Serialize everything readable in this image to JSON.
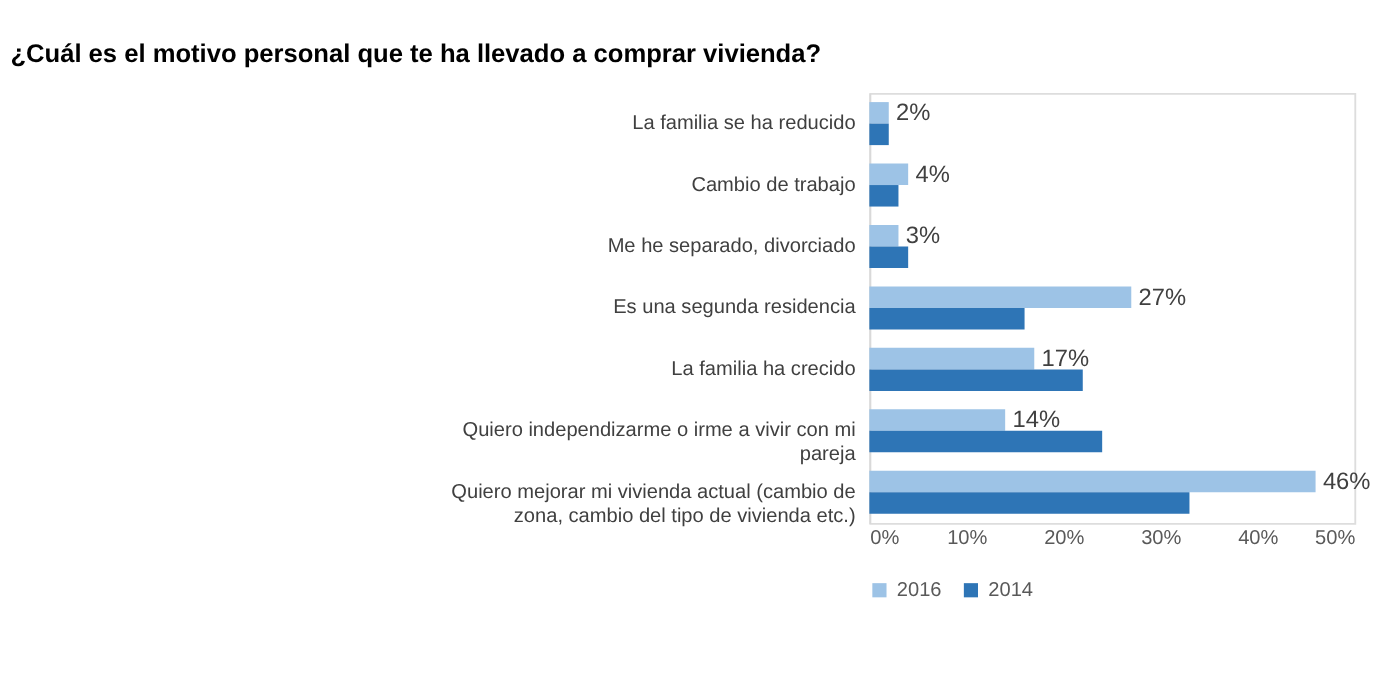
{
  "chart_data": {
    "type": "bar",
    "orientation": "horizontal",
    "title": "¿Cuál es el motivo personal que te ha llevado a comprar vivienda?",
    "categories": [
      "La familia se ha reducido",
      "Cambio de trabajo",
      "Me he separado, divorciado",
      "Es una segunda residencia",
      "La familia ha crecido",
      "Quiero independizarme o irme a vivir con mi pareja",
      "Quiero mejorar mi vivienda actual (cambio de zona, cambio del tipo de vivienda etc.)"
    ],
    "series": [
      {
        "name": "2016",
        "color": "#9dc3e6",
        "values": [
          2,
          4,
          3,
          27,
          17,
          14,
          46
        ],
        "value_labels": [
          "2%",
          "4%",
          "3%",
          "27%",
          "17%",
          "14%",
          "46%"
        ]
      },
      {
        "name": "2014",
        "color": "#2e75b6",
        "values": [
          2,
          3,
          4,
          16,
          22,
          24,
          33
        ]
      }
    ],
    "xlim": [
      0,
      50
    ],
    "xticks": [
      {
        "value": 0,
        "label": "0%"
      },
      {
        "value": 10,
        "label": "10%"
      },
      {
        "value": 20,
        "label": "20%"
      },
      {
        "value": 30,
        "label": "30%"
      },
      {
        "value": 40,
        "label": "40%"
      },
      {
        "value": 50,
        "label": "50%"
      }
    ],
    "grid": false,
    "legend": "bottom"
  }
}
